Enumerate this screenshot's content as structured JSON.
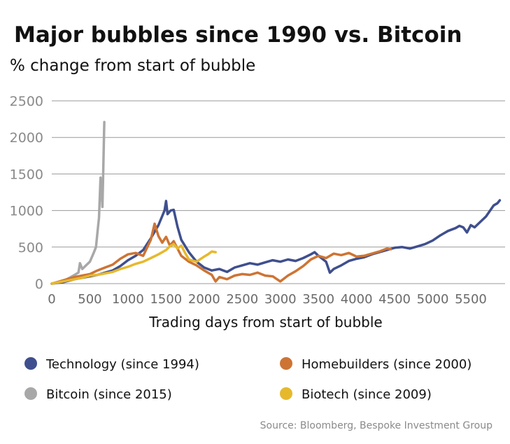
{
  "chart_data": {
    "type": "line",
    "title": "Major bubbles since 1990 vs. Bitcoin",
    "subtitle": "% change from start of bubble",
    "xlabel": "Trading days from start of bubble",
    "ylabel": "",
    "xlim": [
      0,
      5950
    ],
    "ylim": [
      0,
      2500
    ],
    "x_ticks": [
      0,
      500,
      1000,
      1500,
      2000,
      2500,
      3000,
      3500,
      4000,
      4500,
      5000,
      5500
    ],
    "y_ticks": [
      0,
      500,
      1000,
      1500,
      2000,
      2500
    ],
    "grid": true,
    "legend_position": "bottom",
    "source": "Source: Bloomberg, Bespoke Investment Group",
    "series": [
      {
        "name": "Technology (since 1994)",
        "color": "#3f4f8e",
        "points": [
          [
            0,
            0
          ],
          [
            150,
            20
          ],
          [
            300,
            60
          ],
          [
            450,
            90
          ],
          [
            600,
            120
          ],
          [
            700,
            150
          ],
          [
            800,
            180
          ],
          [
            900,
            240
          ],
          [
            1000,
            320
          ],
          [
            1100,
            380
          ],
          [
            1200,
            460
          ],
          [
            1300,
            620
          ],
          [
            1400,
            800
          ],
          [
            1480,
            1000
          ],
          [
            1500,
            1130
          ],
          [
            1520,
            950
          ],
          [
            1560,
            1000
          ],
          [
            1600,
            1010
          ],
          [
            1650,
            780
          ],
          [
            1700,
            600
          ],
          [
            1800,
            430
          ],
          [
            1900,
            300
          ],
          [
            2000,
            220
          ],
          [
            2100,
            180
          ],
          [
            2200,
            200
          ],
          [
            2300,
            160
          ],
          [
            2400,
            220
          ],
          [
            2500,
            250
          ],
          [
            2600,
            280
          ],
          [
            2700,
            260
          ],
          [
            2800,
            290
          ],
          [
            2900,
            320
          ],
          [
            3000,
            300
          ],
          [
            3100,
            330
          ],
          [
            3200,
            310
          ],
          [
            3300,
            350
          ],
          [
            3400,
            400
          ],
          [
            3450,
            430
          ],
          [
            3500,
            380
          ],
          [
            3600,
            300
          ],
          [
            3650,
            150
          ],
          [
            3700,
            200
          ],
          [
            3800,
            250
          ],
          [
            3900,
            310
          ],
          [
            4000,
            340
          ],
          [
            4100,
            360
          ],
          [
            4200,
            400
          ],
          [
            4300,
            430
          ],
          [
            4400,
            460
          ],
          [
            4500,
            490
          ],
          [
            4600,
            500
          ],
          [
            4700,
            480
          ],
          [
            4800,
            510
          ],
          [
            4900,
            540
          ],
          [
            5000,
            590
          ],
          [
            5100,
            660
          ],
          [
            5200,
            720
          ],
          [
            5300,
            760
          ],
          [
            5350,
            790
          ],
          [
            5400,
            770
          ],
          [
            5450,
            700
          ],
          [
            5500,
            800
          ],
          [
            5550,
            770
          ],
          [
            5600,
            820
          ],
          [
            5700,
            920
          ],
          [
            5800,
            1070
          ],
          [
            5850,
            1100
          ],
          [
            5880,
            1140
          ]
        ]
      },
      {
        "name": "Homebuilders (since 2000)",
        "color": "#cd7434",
        "points": [
          [
            0,
            0
          ],
          [
            100,
            30
          ],
          [
            200,
            60
          ],
          [
            300,
            90
          ],
          [
            400,
            110
          ],
          [
            500,
            130
          ],
          [
            600,
            180
          ],
          [
            700,
            220
          ],
          [
            800,
            260
          ],
          [
            900,
            340
          ],
          [
            1000,
            400
          ],
          [
            1100,
            420
          ],
          [
            1200,
            380
          ],
          [
            1300,
            600
          ],
          [
            1350,
            820
          ],
          [
            1400,
            650
          ],
          [
            1450,
            560
          ],
          [
            1500,
            640
          ],
          [
            1550,
            520
          ],
          [
            1600,
            580
          ],
          [
            1650,
            480
          ],
          [
            1700,
            380
          ],
          [
            1800,
            300
          ],
          [
            1900,
            250
          ],
          [
            2000,
            180
          ],
          [
            2100,
            120
          ],
          [
            2150,
            30
          ],
          [
            2200,
            90
          ],
          [
            2300,
            60
          ],
          [
            2400,
            110
          ],
          [
            2500,
            130
          ],
          [
            2600,
            120
          ],
          [
            2700,
            150
          ],
          [
            2800,
            110
          ],
          [
            2900,
            100
          ],
          [
            3000,
            30
          ],
          [
            3100,
            110
          ],
          [
            3200,
            170
          ],
          [
            3300,
            240
          ],
          [
            3400,
            330
          ],
          [
            3500,
            380
          ],
          [
            3600,
            350
          ],
          [
            3700,
            410
          ],
          [
            3800,
            390
          ],
          [
            3900,
            420
          ],
          [
            4000,
            370
          ],
          [
            4100,
            380
          ],
          [
            4200,
            410
          ],
          [
            4300,
            440
          ],
          [
            4400,
            480
          ],
          [
            4450,
            470
          ]
        ]
      },
      {
        "name": "Bitcoin (since 2015)",
        "color": "#a8a8a8",
        "points": [
          [
            0,
            0
          ],
          [
            50,
            10
          ],
          [
            100,
            20
          ],
          [
            150,
            30
          ],
          [
            200,
            60
          ],
          [
            250,
            90
          ],
          [
            300,
            120
          ],
          [
            350,
            150
          ],
          [
            370,
            280
          ],
          [
            400,
            200
          ],
          [
            450,
            250
          ],
          [
            500,
            300
          ],
          [
            550,
            420
          ],
          [
            580,
            500
          ],
          [
            600,
            700
          ],
          [
            620,
            900
          ],
          [
            640,
            1450
          ],
          [
            655,
            1300
          ],
          [
            665,
            1050
          ],
          [
            675,
            1500
          ],
          [
            685,
            2000
          ],
          [
            690,
            2210
          ]
        ]
      },
      {
        "name": "Biotech (since 2009)",
        "color": "#e6b92d",
        "points": [
          [
            0,
            0
          ],
          [
            100,
            20
          ],
          [
            200,
            40
          ],
          [
            300,
            60
          ],
          [
            400,
            80
          ],
          [
            500,
            110
          ],
          [
            600,
            120
          ],
          [
            700,
            140
          ],
          [
            800,
            160
          ],
          [
            900,
            200
          ],
          [
            1000,
            230
          ],
          [
            1100,
            270
          ],
          [
            1200,
            300
          ],
          [
            1300,
            350
          ],
          [
            1400,
            400
          ],
          [
            1500,
            460
          ],
          [
            1550,
            510
          ],
          [
            1600,
            540
          ],
          [
            1650,
            480
          ],
          [
            1700,
            520
          ],
          [
            1750,
            420
          ],
          [
            1800,
            330
          ],
          [
            1900,
            300
          ],
          [
            2000,
            370
          ],
          [
            2050,
            400
          ],
          [
            2100,
            440
          ],
          [
            2150,
            430
          ]
        ]
      }
    ]
  }
}
